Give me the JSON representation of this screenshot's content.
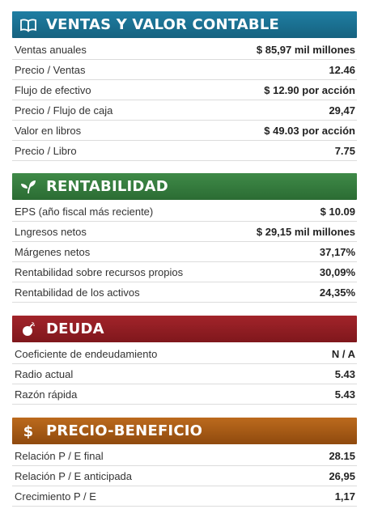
{
  "sections": [
    {
      "title": "VENTAS Y VALOR CONTABLE",
      "icon": "open-book-icon",
      "color": "#1a7091",
      "rows": [
        {
          "label": "Ventas anuales",
          "value": "$ 85,97 mil millones"
        },
        {
          "label": "Precio / Ventas",
          "value": "12.46"
        },
        {
          "label": "Flujo de efectivo",
          "value": "$ 12.90 por acción"
        },
        {
          "label": "Precio / Flujo de caja",
          "value": "29,47"
        },
        {
          "label": "Valor en libros",
          "value": "$ 49.03 por acción"
        },
        {
          "label": "Precio / Libro",
          "value": "7.75"
        }
      ]
    },
    {
      "title": "RENTABILIDAD",
      "icon": "leaf-sprout-icon",
      "color": "#357a3d",
      "rows": [
        {
          "label": "EPS (año fiscal más reciente)",
          "value": "$ 10.09"
        },
        {
          "label": "Lngresos netos",
          "value": "$ 29,15 mil millones"
        },
        {
          "label": "Márgenes netos",
          "value": "37,17%"
        },
        {
          "label": "Rentabilidad sobre recursos propios",
          "value": "30,09%"
        },
        {
          "label": "Rentabilidad de los activos",
          "value": "24,35%"
        }
      ]
    },
    {
      "title": "DEUDA",
      "icon": "bomb-icon",
      "color": "#901d22",
      "rows": [
        {
          "label": "Coeficiente de endeudamiento",
          "value": "N / A"
        },
        {
          "label": "Radio actual",
          "value": "5.43"
        },
        {
          "label": "Razón rápida",
          "value": "5.43"
        }
      ]
    },
    {
      "title": "PRECIO-BENEFICIO",
      "icon": "dollar-sign-icon",
      "color": "#a55a16",
      "rows": [
        {
          "label": "Relación P / E final",
          "value": "28.15"
        },
        {
          "label": "Relación P / E anticipada",
          "value": "26,95"
        },
        {
          "label": "Crecimiento P / E",
          "value": "1,17"
        }
      ]
    }
  ]
}
